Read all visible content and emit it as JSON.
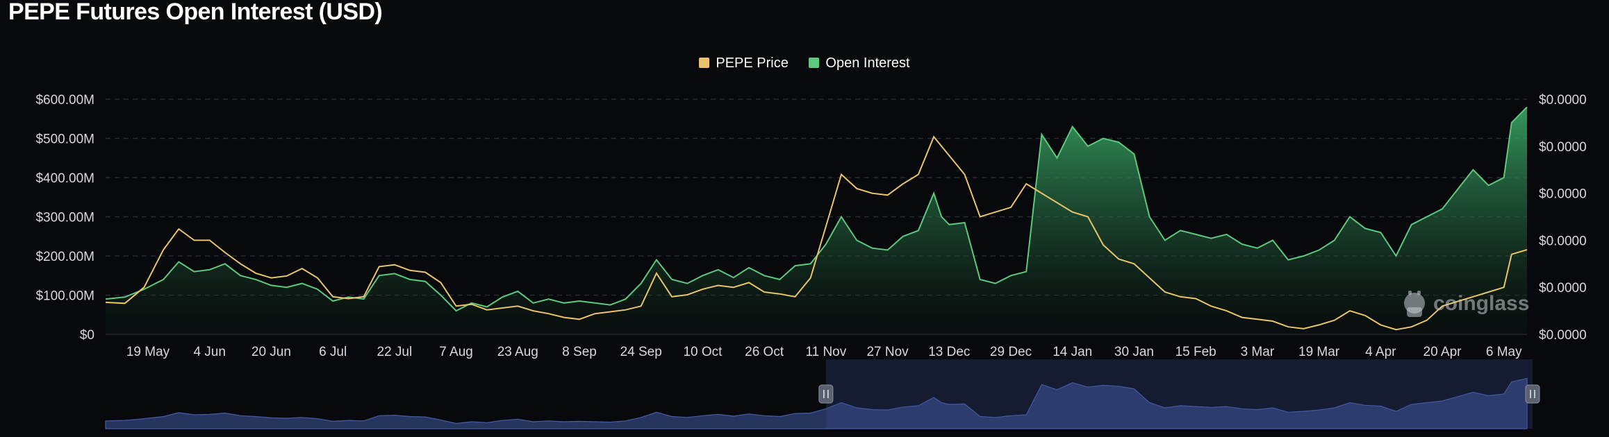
{
  "title": "PEPE Futures Open Interest (USD)",
  "watermark": "coinglass",
  "colors": {
    "background": "#08090c",
    "price": "#e9c46a",
    "open_interest": "#5ec97e",
    "grid": "#2c3038",
    "navigator_fill": "#2a3a66",
    "navigator_line": "#4e66b8",
    "navigator_window": "#1b2444"
  },
  "chart_data": {
    "type": "line",
    "title": "PEPE Futures Open Interest (USD)",
    "legend_position": "top-center",
    "grid": true,
    "x_tick_labels": [
      "19 May",
      "4 Jun",
      "20 Jun",
      "6 Jul",
      "22 Jul",
      "7 Aug",
      "23 Aug",
      "8 Sep",
      "24 Sep",
      "10 Oct",
      "26 Oct",
      "11 Nov",
      "27 Nov",
      "13 Dec",
      "29 Dec",
      "14 Jan",
      "30 Jan",
      "15 Feb",
      "3 Mar",
      "19 Mar",
      "4 Apr",
      "20 Apr",
      "6 May"
    ],
    "y_left_ticks": [
      "$0",
      "$100.00M",
      "$200.00M",
      "$300.00M",
      "$400.00M",
      "$500.00M",
      "$600.00M"
    ],
    "y_right_ticks": [
      "$0.0000",
      "$0.0000",
      "$0.0000",
      "$0.0000",
      "$0.0000",
      "$0.0000"
    ],
    "y_left_range": [
      0,
      600
    ],
    "y_left_unit": "$M",
    "y_right_range": [
      0,
      2.5e-05
    ],
    "x_range": [
      "2024-05-08",
      "2025-05-12"
    ],
    "series": [
      {
        "name": "Open Interest",
        "axis": "left",
        "kind": "area",
        "points": [
          [
            "2024-05-08",
            90
          ],
          [
            "2024-05-13",
            95
          ],
          [
            "2024-05-18",
            115
          ],
          [
            "2024-05-23",
            140
          ],
          [
            "2024-05-27",
            185
          ],
          [
            "2024-05-31",
            160
          ],
          [
            "2024-06-04",
            165
          ],
          [
            "2024-06-08",
            180
          ],
          [
            "2024-06-12",
            150
          ],
          [
            "2024-06-16",
            140
          ],
          [
            "2024-06-20",
            125
          ],
          [
            "2024-06-24",
            120
          ],
          [
            "2024-06-28",
            130
          ],
          [
            "2024-07-02",
            115
          ],
          [
            "2024-07-06",
            85
          ],
          [
            "2024-07-10",
            95
          ],
          [
            "2024-07-14",
            90
          ],
          [
            "2024-07-18",
            150
          ],
          [
            "2024-07-22",
            155
          ],
          [
            "2024-07-26",
            140
          ],
          [
            "2024-07-30",
            135
          ],
          [
            "2024-08-03",
            100
          ],
          [
            "2024-08-07",
            60
          ],
          [
            "2024-08-11",
            80
          ],
          [
            "2024-08-15",
            70
          ],
          [
            "2024-08-19",
            95
          ],
          [
            "2024-08-23",
            110
          ],
          [
            "2024-08-27",
            80
          ],
          [
            "2024-08-31",
            90
          ],
          [
            "2024-09-04",
            80
          ],
          [
            "2024-09-08",
            85
          ],
          [
            "2024-09-12",
            80
          ],
          [
            "2024-09-16",
            75
          ],
          [
            "2024-09-20",
            90
          ],
          [
            "2024-09-24",
            130
          ],
          [
            "2024-09-28",
            190
          ],
          [
            "2024-10-02",
            140
          ],
          [
            "2024-10-06",
            130
          ],
          [
            "2024-10-10",
            150
          ],
          [
            "2024-10-14",
            165
          ],
          [
            "2024-10-18",
            145
          ],
          [
            "2024-10-22",
            170
          ],
          [
            "2024-10-26",
            150
          ],
          [
            "2024-10-30",
            140
          ],
          [
            "2024-11-03",
            175
          ],
          [
            "2024-11-07",
            180
          ],
          [
            "2024-11-11",
            230
          ],
          [
            "2024-11-15",
            300
          ],
          [
            "2024-11-19",
            240
          ],
          [
            "2024-11-23",
            220
          ],
          [
            "2024-11-27",
            215
          ],
          [
            "2024-12-01",
            250
          ],
          [
            "2024-12-05",
            265
          ],
          [
            "2024-12-09",
            360
          ],
          [
            "2024-12-11",
            300
          ],
          [
            "2024-12-13",
            280
          ],
          [
            "2024-12-17",
            285
          ],
          [
            "2024-12-21",
            140
          ],
          [
            "2024-12-25",
            130
          ],
          [
            "2024-12-29",
            150
          ],
          [
            "2025-01-02",
            160
          ],
          [
            "2025-01-06",
            510
          ],
          [
            "2025-01-10",
            450
          ],
          [
            "2025-01-14",
            530
          ],
          [
            "2025-01-18",
            480
          ],
          [
            "2025-01-22",
            500
          ],
          [
            "2025-01-26",
            490
          ],
          [
            "2025-01-30",
            460
          ],
          [
            "2025-02-03",
            300
          ],
          [
            "2025-02-07",
            240
          ],
          [
            "2025-02-11",
            265
          ],
          [
            "2025-02-15",
            255
          ],
          [
            "2025-02-19",
            245
          ],
          [
            "2025-02-23",
            255
          ],
          [
            "2025-02-27",
            230
          ],
          [
            "2025-03-03",
            220
          ],
          [
            "2025-03-07",
            240
          ],
          [
            "2025-03-11",
            190
          ],
          [
            "2025-03-15",
            200
          ],
          [
            "2025-03-19",
            215
          ],
          [
            "2025-03-23",
            240
          ],
          [
            "2025-03-27",
            300
          ],
          [
            "2025-03-31",
            270
          ],
          [
            "2025-04-04",
            260
          ],
          [
            "2025-04-08",
            200
          ],
          [
            "2025-04-12",
            280
          ],
          [
            "2025-04-16",
            300
          ],
          [
            "2025-04-20",
            320
          ],
          [
            "2025-04-24",
            370
          ],
          [
            "2025-04-28",
            420
          ],
          [
            "2025-05-02",
            380
          ],
          [
            "2025-05-06",
            400
          ],
          [
            "2025-05-08",
            540
          ],
          [
            "2025-05-12",
            580
          ]
        ]
      },
      {
        "name": "PEPE Price",
        "axis": "right",
        "kind": "line",
        "points": [
          [
            "2024-05-08",
            3.4e-06
          ],
          [
            "2024-05-13",
            3.3e-06
          ],
          [
            "2024-05-18",
            5e-06
          ],
          [
            "2024-05-23",
            9e-06
          ],
          [
            "2024-05-27",
            1.12e-05
          ],
          [
            "2024-05-31",
            1e-05
          ],
          [
            "2024-06-04",
            1e-05
          ],
          [
            "2024-06-08",
            8.7e-06
          ],
          [
            "2024-06-12",
            7.5e-06
          ],
          [
            "2024-06-16",
            6.5e-06
          ],
          [
            "2024-06-20",
            6e-06
          ],
          [
            "2024-06-24",
            6.2e-06
          ],
          [
            "2024-06-28",
            7e-06
          ],
          [
            "2024-07-02",
            6e-06
          ],
          [
            "2024-07-06",
            4e-06
          ],
          [
            "2024-07-10",
            3.8e-06
          ],
          [
            "2024-07-14",
            4e-06
          ],
          [
            "2024-07-18",
            7.2e-06
          ],
          [
            "2024-07-22",
            7.4e-06
          ],
          [
            "2024-07-26",
            6.8e-06
          ],
          [
            "2024-07-30",
            6.6e-06
          ],
          [
            "2024-08-03",
            5.5e-06
          ],
          [
            "2024-08-07",
            3e-06
          ],
          [
            "2024-08-11",
            3.2e-06
          ],
          [
            "2024-08-15",
            2.6e-06
          ],
          [
            "2024-08-19",
            2.8e-06
          ],
          [
            "2024-08-23",
            3e-06
          ],
          [
            "2024-08-27",
            2.5e-06
          ],
          [
            "2024-08-31",
            2.2e-06
          ],
          [
            "2024-09-04",
            1.8e-06
          ],
          [
            "2024-09-08",
            1.6e-06
          ],
          [
            "2024-09-12",
            2.2e-06
          ],
          [
            "2024-09-16",
            2.4e-06
          ],
          [
            "2024-09-20",
            2.6e-06
          ],
          [
            "2024-09-24",
            3e-06
          ],
          [
            "2024-09-28",
            6.5e-06
          ],
          [
            "2024-10-02",
            4e-06
          ],
          [
            "2024-10-06",
            4.2e-06
          ],
          [
            "2024-10-10",
            4.8e-06
          ],
          [
            "2024-10-14",
            5.2e-06
          ],
          [
            "2024-10-18",
            5e-06
          ],
          [
            "2024-10-22",
            5.5e-06
          ],
          [
            "2024-10-26",
            4.5e-06
          ],
          [
            "2024-10-30",
            4.3e-06
          ],
          [
            "2024-11-03",
            4e-06
          ],
          [
            "2024-11-07",
            6e-06
          ],
          [
            "2024-11-11",
            1.15e-05
          ],
          [
            "2024-11-15",
            1.7e-05
          ],
          [
            "2024-11-19",
            1.55e-05
          ],
          [
            "2024-11-23",
            1.5e-05
          ],
          [
            "2024-11-27",
            1.48e-05
          ],
          [
            "2024-12-01",
            1.6e-05
          ],
          [
            "2024-12-05",
            1.7e-05
          ],
          [
            "2024-12-09",
            2.1e-05
          ],
          [
            "2024-12-11",
            2e-05
          ],
          [
            "2024-12-13",
            1.9e-05
          ],
          [
            "2024-12-17",
            1.7e-05
          ],
          [
            "2024-12-21",
            1.25e-05
          ],
          [
            "2024-12-25",
            1.3e-05
          ],
          [
            "2024-12-29",
            1.35e-05
          ],
          [
            "2025-01-02",
            1.6e-05
          ],
          [
            "2025-01-06",
            1.5e-05
          ],
          [
            "2025-01-10",
            1.4e-05
          ],
          [
            "2025-01-14",
            1.3e-05
          ],
          [
            "2025-01-18",
            1.25e-05
          ],
          [
            "2025-01-22",
            9.5e-06
          ],
          [
            "2025-01-26",
            8e-06
          ],
          [
            "2025-01-30",
            7.5e-06
          ],
          [
            "2025-02-03",
            6e-06
          ],
          [
            "2025-02-07",
            4.5e-06
          ],
          [
            "2025-02-11",
            4e-06
          ],
          [
            "2025-02-15",
            3.8e-06
          ],
          [
            "2025-02-19",
            3e-06
          ],
          [
            "2025-02-23",
            2.5e-06
          ],
          [
            "2025-02-27",
            1.8e-06
          ],
          [
            "2025-03-03",
            1.6e-06
          ],
          [
            "2025-03-07",
            1.4e-06
          ],
          [
            "2025-03-11",
            8e-07
          ],
          [
            "2025-03-15",
            6e-07
          ],
          [
            "2025-03-19",
            1e-06
          ],
          [
            "2025-03-23",
            1.5e-06
          ],
          [
            "2025-03-27",
            2.5e-06
          ],
          [
            "2025-03-31",
            2e-06
          ],
          [
            "2025-04-04",
            1e-06
          ],
          [
            "2025-04-08",
            5e-07
          ],
          [
            "2025-04-12",
            8e-07
          ],
          [
            "2025-04-16",
            1.5e-06
          ],
          [
            "2025-04-20",
            3e-06
          ],
          [
            "2025-04-24",
            3.5e-06
          ],
          [
            "2025-04-28",
            4e-06
          ],
          [
            "2025-05-02",
            4.5e-06
          ],
          [
            "2025-05-06",
            5e-06
          ],
          [
            "2025-05-08",
            8.5e-06
          ],
          [
            "2025-05-12",
            9e-06
          ]
        ]
      }
    ],
    "navigator": {
      "selected_range": [
        "2024-11-11",
        "2025-05-12"
      ]
    }
  }
}
